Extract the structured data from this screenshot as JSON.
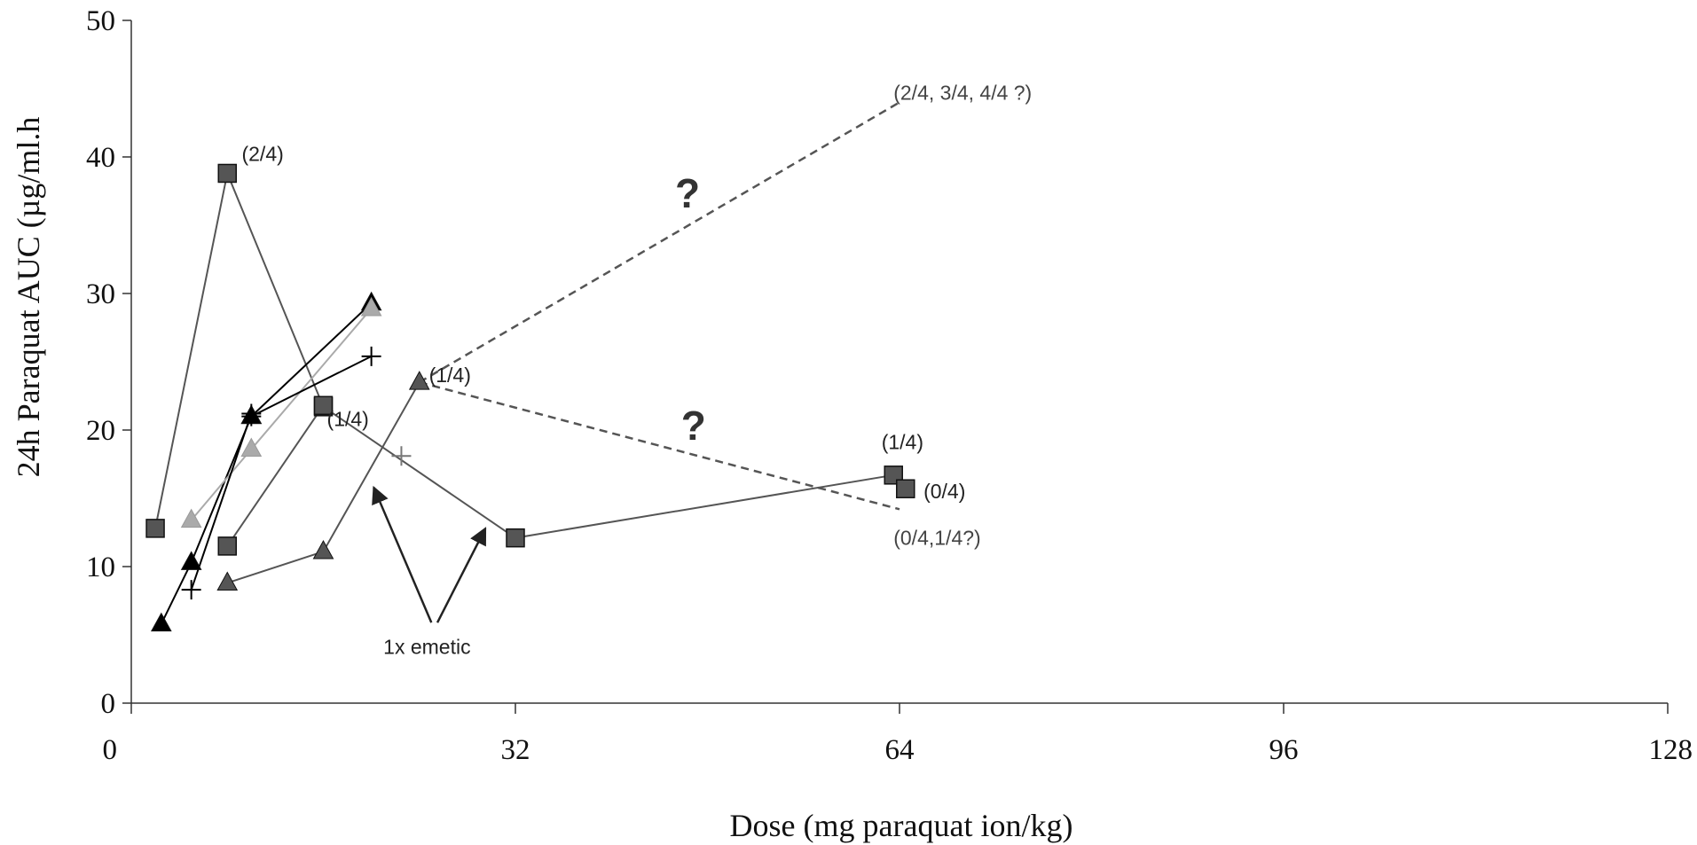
{
  "chart_data": {
    "type": "scatter",
    "title": "",
    "xlabel": "Dose (mg paraquat ion/kg)",
    "ylabel": "24h Paraquat AUC (µg/ml.h",
    "xlim": [
      0,
      128
    ],
    "ylim": [
      0,
      50
    ],
    "x_ticks": [
      "0",
      "32",
      "64",
      "96",
      "128"
    ],
    "y_ticks": [
      "0",
      "10",
      "20",
      "30",
      "40",
      "50"
    ],
    "grid": false,
    "legend": "none",
    "series": [
      {
        "marker": "square",
        "color": "#555555",
        "line_color": "#555555",
        "dash": false,
        "points": [
          [
            2,
            12.8
          ],
          [
            8,
            38.8
          ],
          [
            16,
            21.7
          ],
          [
            32,
            12.1
          ],
          [
            63.5,
            16.7
          ]
        ]
      },
      {
        "marker": "square",
        "color": "#555555",
        "line_color": "#555555",
        "dash": false,
        "points": [
          [
            64.5,
            15.7
          ]
        ]
      },
      {
        "marker": "square",
        "color": "#555555",
        "line_color": "#555555",
        "dash": false,
        "points": [
          [
            8,
            11.5
          ],
          [
            16,
            21.8
          ]
        ]
      },
      {
        "marker": "triangle",
        "color": "#555555",
        "line_color": "#555555",
        "dash": false,
        "points": [
          [
            8,
            8.8
          ],
          [
            16,
            11.1
          ],
          [
            24,
            23.5
          ]
        ]
      },
      {
        "marker": "triangle",
        "color": "#000000",
        "line_color": "#000000",
        "dash": false,
        "points": [
          [
            2.5,
            5.8
          ],
          [
            5,
            10.3
          ],
          [
            10,
            21
          ]
        ]
      },
      {
        "marker": "triangle",
        "color": "#000000",
        "line_color": "#000000",
        "dash": false,
        "points": [
          [
            10,
            21
          ],
          [
            20,
            29.3
          ]
        ]
      },
      {
        "marker": "triangle",
        "color": "#aaaaaa",
        "line_color": "#aaaaaa",
        "dash": false,
        "points": [
          [
            5,
            13.4
          ],
          [
            10,
            18.6
          ],
          [
            20,
            28.9
          ]
        ]
      },
      {
        "marker": "plus",
        "color": "#000000",
        "line_color": "#000000",
        "dash": false,
        "points": [
          [
            5,
            8.3
          ],
          [
            10,
            21.2
          ]
        ]
      },
      {
        "marker": "plus",
        "color": "#000000",
        "line_color": "#000000",
        "dash": false,
        "points": [
          [
            10,
            21
          ],
          [
            20,
            25.4
          ]
        ]
      },
      {
        "marker": "plus",
        "color": "#777777",
        "line_color": "#777777",
        "dash": false,
        "points": [
          [
            22.5,
            18.1
          ]
        ]
      },
      {
        "marker": "none",
        "color": "#555555",
        "line_color": "#555555",
        "dash": true,
        "points": [
          [
            24,
            23.5
          ],
          [
            64,
            44
          ]
        ]
      },
      {
        "marker": "none",
        "color": "#555555",
        "line_color": "#555555",
        "dash": true,
        "points": [
          [
            24,
            23.5
          ],
          [
            64,
            14.2
          ]
        ]
      }
    ],
    "annotations": [
      {
        "text": "(2/4)",
        "x": 9.2,
        "y": 39.7,
        "style": "ann"
      },
      {
        "text": "(1/4)",
        "x": 16.3,
        "y": 20.3,
        "style": "ann"
      },
      {
        "text": "(1/4)",
        "x": 24.8,
        "y": 23.5,
        "style": "ann"
      },
      {
        "text": "(1/4)",
        "x": 62.5,
        "y": 18.6,
        "style": "ann"
      },
      {
        "text": "(0/4)",
        "x": 66,
        "y": 15,
        "style": "ann"
      },
      {
        "text": "(2/4, 3/4, 4/4 ?)",
        "x": 63.5,
        "y": 44.2,
        "style": "ann-grey"
      },
      {
        "text": "(0/4,1/4?)",
        "x": 63.5,
        "y": 11.6,
        "style": "ann-grey"
      },
      {
        "text": "1x emetic",
        "x": 21,
        "y": 3.6,
        "style": "ann"
      },
      {
        "text": "?",
        "x": 45.3,
        "y": 36.3,
        "style": "qmark"
      },
      {
        "text": "?",
        "x": 45.8,
        "y": 19.3,
        "style": "qmark"
      }
    ],
    "arrows": [
      {
        "from": [
          25,
          5.9
        ],
        "to": [
          20.2,
          15.8
        ]
      },
      {
        "from": [
          25.5,
          5.9
        ],
        "to": [
          29.5,
          12.8
        ]
      }
    ]
  }
}
